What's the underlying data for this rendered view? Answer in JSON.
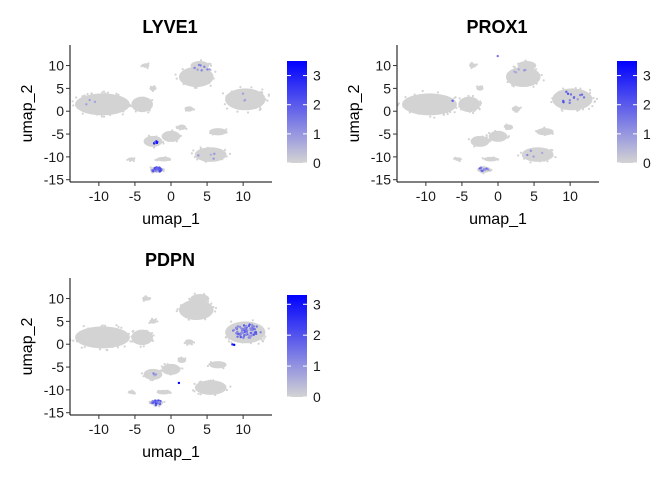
{
  "chart_data": [
    {
      "type": "scatter",
      "title": "LYVE1",
      "xlabel": "umap_1",
      "ylabel": "umap_2",
      "xlim": [
        -14,
        14
      ],
      "ylim": [
        -15.5,
        14.5
      ],
      "xticks": [
        -10,
        -5,
        0,
        5,
        10
      ],
      "yticks": [
        -15,
        -10,
        -5,
        0,
        5,
        10
      ],
      "color_scale": {
        "low": "#d3d3d3",
        "high": "#0000ff",
        "min": 0,
        "max": 3.5,
        "ticks": [
          0,
          1,
          2,
          3
        ]
      },
      "highlights": [
        {
          "x": 4.2,
          "y": 9.3,
          "n": 8,
          "spread": 1.2,
          "value": 1.2
        },
        {
          "x": 10.5,
          "y": 3.2,
          "n": 3,
          "spread": 1.5,
          "value": 0.8
        },
        {
          "x": -2.0,
          "y": -12.8,
          "n": 30,
          "spread": 0.7,
          "value": 1.8
        },
        {
          "x": -2.2,
          "y": -6.9,
          "n": 6,
          "spread": 0.4,
          "value": 2.8
        },
        {
          "x": 5.0,
          "y": -9.5,
          "n": 4,
          "spread": 1.5,
          "value": 0.9
        },
        {
          "x": -10.5,
          "y": 1.8,
          "n": 3,
          "spread": 1.5,
          "value": 0.8
        }
      ]
    },
    {
      "type": "scatter",
      "title": "PROX1",
      "xlabel": "umap_1",
      "ylabel": "umap_2",
      "xlim": [
        -14,
        14
      ],
      "ylim": [
        -15.5,
        14.5
      ],
      "xticks": [
        -10,
        -5,
        0,
        5,
        10
      ],
      "yticks": [
        -15,
        -10,
        -5,
        0,
        5,
        10
      ],
      "color_scale": {
        "low": "#d3d3d3",
        "high": "#0000ff",
        "min": 0,
        "max": 3.5,
        "ticks": [
          0,
          1,
          2,
          3
        ]
      },
      "highlights": [
        {
          "x": 10.5,
          "y": 3.0,
          "n": 14,
          "spread": 2.0,
          "value": 1.6
        },
        {
          "x": 2.5,
          "y": 9.0,
          "n": 5,
          "spread": 1.5,
          "value": 1.0
        },
        {
          "x": -6.3,
          "y": 2.3,
          "n": 1,
          "spread": 0.1,
          "value": 3.3
        },
        {
          "x": -2.0,
          "y": -12.8,
          "n": 10,
          "spread": 0.7,
          "value": 1.4
        },
        {
          "x": 0.0,
          "y": 12.0,
          "n": 1,
          "spread": 0.1,
          "value": 1.5
        },
        {
          "x": 5.0,
          "y": -9.5,
          "n": 4,
          "spread": 1.5,
          "value": 0.9
        }
      ]
    },
    {
      "type": "scatter",
      "title": "PDPN",
      "xlabel": "umap_1",
      "ylabel": "umap_2",
      "xlim": [
        -14,
        14
      ],
      "ylim": [
        -15.5,
        14.5
      ],
      "xticks": [
        -10,
        -5,
        0,
        5,
        10
      ],
      "yticks": [
        -15,
        -10,
        -5,
        0,
        5,
        10
      ],
      "color_scale": {
        "low": "#d3d3d3",
        "high": "#0000ff",
        "min": 0,
        "max": 3.3,
        "ticks": [
          0,
          1,
          2,
          3
        ]
      },
      "highlights": [
        {
          "x": 10.5,
          "y": 2.8,
          "n": 70,
          "spread": 2.0,
          "value": 1.5
        },
        {
          "x": 8.8,
          "y": 0.0,
          "n": 2,
          "spread": 0.3,
          "value": 3.0
        },
        {
          "x": -2.0,
          "y": -12.8,
          "n": 25,
          "spread": 0.7,
          "value": 1.7
        },
        {
          "x": 1.0,
          "y": -8.5,
          "n": 1,
          "spread": 0.1,
          "value": 3.0
        },
        {
          "x": -2.0,
          "y": -6.5,
          "n": 3,
          "spread": 0.5,
          "value": 1.0
        }
      ]
    }
  ],
  "clusters": [
    {
      "x": -9.5,
      "y": 1.5,
      "rx": 3.8,
      "ry": 2.4,
      "n": 120
    },
    {
      "x": -4.0,
      "y": 1.5,
      "rx": 1.5,
      "ry": 1.7,
      "n": 40
    },
    {
      "x": -3.5,
      "y": 10.0,
      "rx": 0.5,
      "ry": 0.5,
      "n": 6
    },
    {
      "x": -2.5,
      "y": 5.0,
      "rx": 0.5,
      "ry": 0.5,
      "n": 6
    },
    {
      "x": 3.5,
      "y": 7.5,
      "rx": 2.4,
      "ry": 2.2,
      "n": 60
    },
    {
      "x": 4.0,
      "y": 10.0,
      "rx": 1.3,
      "ry": 1.0,
      "n": 20
    },
    {
      "x": 10.3,
      "y": 2.6,
      "rx": 2.8,
      "ry": 2.4,
      "n": 80
    },
    {
      "x": 2.5,
      "y": 0.5,
      "rx": 0.6,
      "ry": 0.6,
      "n": 8
    },
    {
      "x": -2.5,
      "y": -6.6,
      "rx": 1.3,
      "ry": 1.2,
      "n": 25
    },
    {
      "x": 0.0,
      "y": -5.5,
      "rx": 1.3,
      "ry": 1.2,
      "n": 20
    },
    {
      "x": 1.5,
      "y": -3.5,
      "rx": 0.6,
      "ry": 0.6,
      "n": 8
    },
    {
      "x": -1.0,
      "y": -10.5,
      "rx": 1.0,
      "ry": 0.5,
      "n": 10
    },
    {
      "x": 6.5,
      "y": -4.5,
      "rx": 1.2,
      "ry": 0.8,
      "n": 14
    },
    {
      "x": 5.5,
      "y": -9.5,
      "rx": 2.2,
      "ry": 1.6,
      "n": 45
    },
    {
      "x": -2.0,
      "y": -12.8,
      "rx": 0.9,
      "ry": 0.7,
      "n": 20
    },
    {
      "x": -5.5,
      "y": -10.5,
      "rx": 0.5,
      "ry": 0.4,
      "n": 4
    }
  ]
}
